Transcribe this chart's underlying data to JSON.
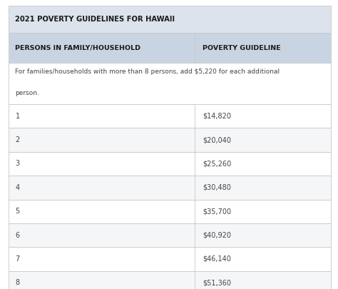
{
  "title": "2021 POVERTY GUIDELINES FOR HAWAII",
  "col1_header": "PERSONS IN FAMILY/HOUSEHOLD",
  "col2_header": "POVERTY GUIDELINE",
  "note_line1": "For families/households with more than 8 persons, add $5,220 for each additional",
  "note_line2": "person.",
  "rows": [
    [
      "1",
      "$14,820"
    ],
    [
      "2",
      "$20,040"
    ],
    [
      "3",
      "$25,260"
    ],
    [
      "4",
      "$30,480"
    ],
    [
      "5",
      "$35,700"
    ],
    [
      "6",
      "$40,920"
    ],
    [
      "7",
      "$46,140"
    ],
    [
      "8",
      "$51,360"
    ]
  ],
  "header_bg": "#c9d4e3",
  "title_bg": "#dce3ed",
  "row_bg_white": "#ffffff",
  "row_bg_light": "#f5f6f8",
  "border_color": "#c8c8c8",
  "text_color": "#444444",
  "header_text_color": "#1a1a1a",
  "col_split": 0.575,
  "fig_width": 4.74,
  "fig_height": 4.05,
  "dpi": 100
}
